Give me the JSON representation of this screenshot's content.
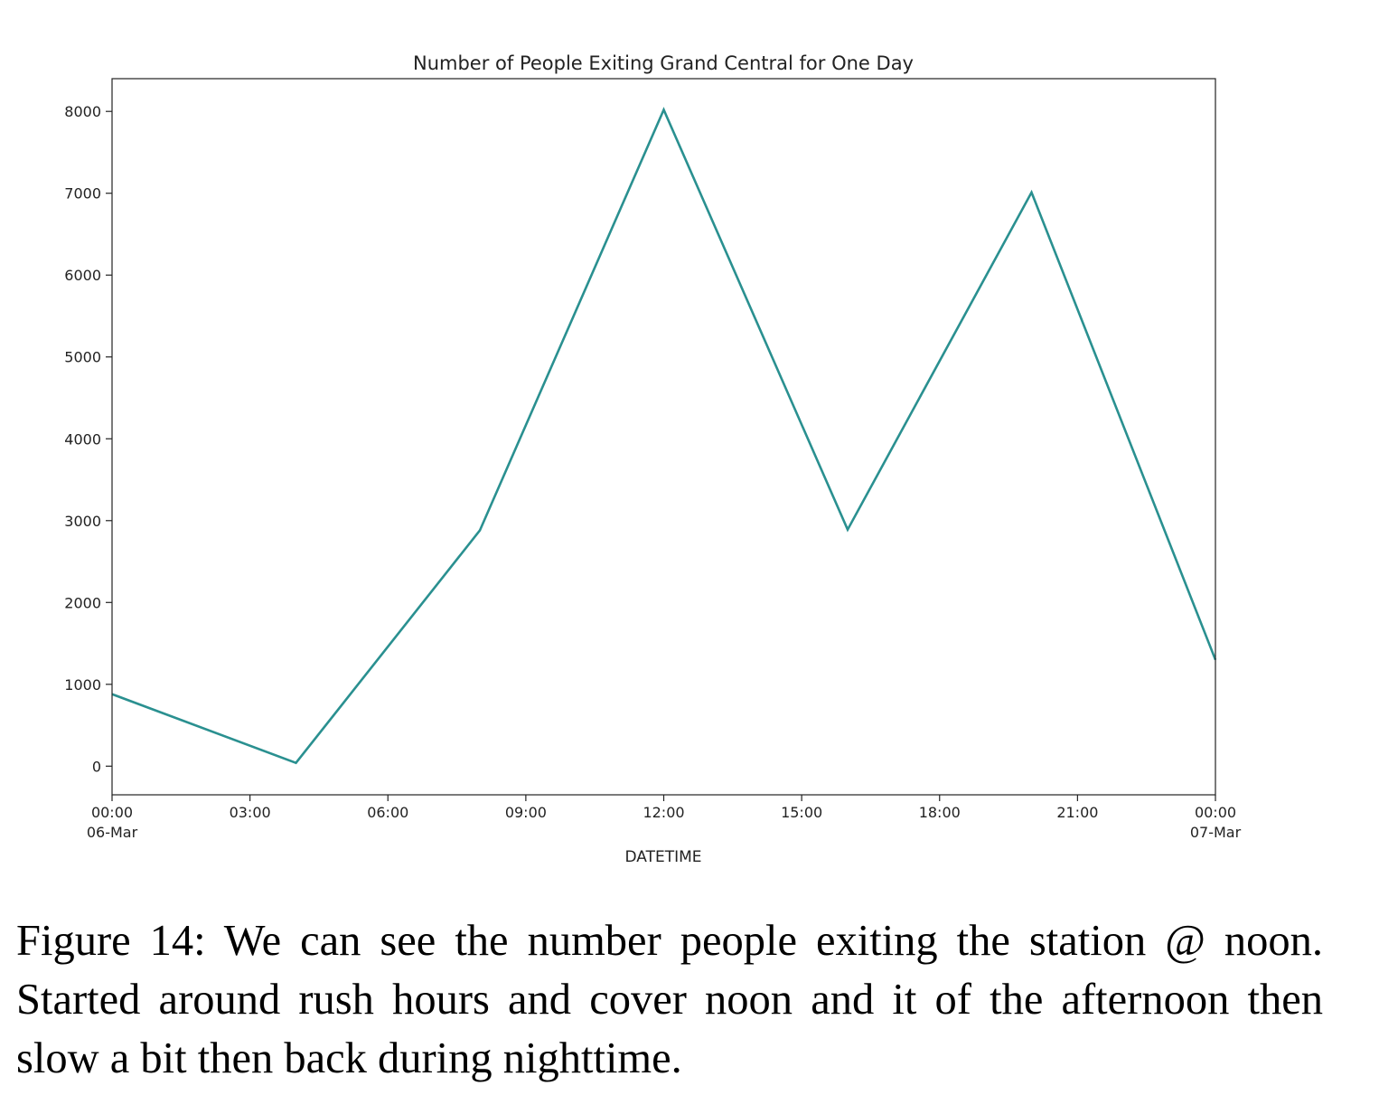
{
  "chart_data": {
    "type": "line",
    "title": "Number of People Exiting Grand Central for One Day",
    "xlabel": "DATETIME",
    "ylabel": "",
    "x_ticks": [
      {
        "hour": 0,
        "label": "00:00",
        "sublabel": "06-Mar"
      },
      {
        "hour": 3,
        "label": "03:00",
        "sublabel": ""
      },
      {
        "hour": 6,
        "label": "06:00",
        "sublabel": ""
      },
      {
        "hour": 9,
        "label": "09:00",
        "sublabel": ""
      },
      {
        "hour": 12,
        "label": "12:00",
        "sublabel": ""
      },
      {
        "hour": 15,
        "label": "15:00",
        "sublabel": ""
      },
      {
        "hour": 18,
        "label": "18:00",
        "sublabel": ""
      },
      {
        "hour": 21,
        "label": "21:00",
        "sublabel": ""
      },
      {
        "hour": 24,
        "label": "00:00",
        "sublabel": "07-Mar"
      }
    ],
    "y_ticks": [
      0,
      1000,
      2000,
      3000,
      4000,
      5000,
      6000,
      7000,
      8000
    ],
    "xlim_hours": [
      0,
      24
    ],
    "ylim": [
      -350,
      8400
    ],
    "grid": false,
    "series": [
      {
        "color": "#2a9090",
        "x_hours": [
          0,
          4,
          8,
          12,
          16,
          20,
          24
        ],
        "y": [
          880,
          40,
          2880,
          8020,
          2890,
          7010,
          1300
        ]
      }
    ]
  },
  "caption": {
    "text": "Figure 14: We can see the number people exiting the station @ noon. Started around rush hours and cover noon and it of the afternoon then slow a bit then back during nighttime."
  }
}
